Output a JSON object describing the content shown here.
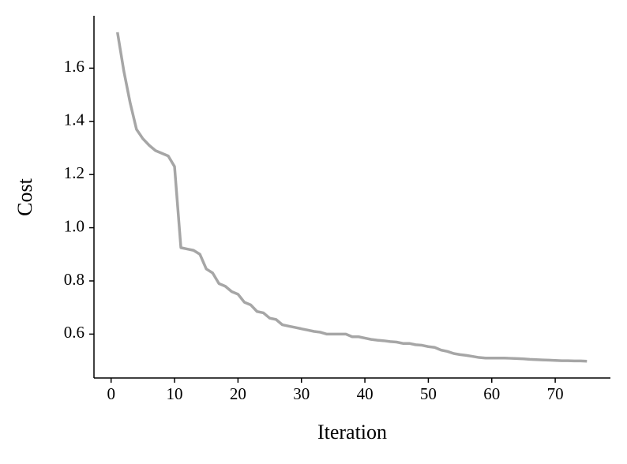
{
  "chart_data": {
    "type": "line",
    "xlabel": "Iteration",
    "ylabel": "Cost",
    "x": [
      1,
      2,
      3,
      4,
      5,
      6,
      7,
      8,
      9,
      10,
      11,
      12,
      13,
      14,
      15,
      16,
      17,
      18,
      19,
      20,
      21,
      22,
      23,
      24,
      25,
      26,
      27,
      28,
      29,
      30,
      31,
      32,
      33,
      34,
      35,
      36,
      37,
      38,
      39,
      40,
      41,
      42,
      43,
      44,
      45,
      46,
      47,
      48,
      49,
      50,
      51,
      52,
      53,
      54,
      55,
      56,
      57,
      58,
      59,
      60,
      61,
      62,
      63,
      64,
      65,
      66,
      67,
      68,
      69,
      70,
      71,
      72,
      73,
      74,
      75
    ],
    "series": [
      {
        "color": "#a6a6a6",
        "values": [
          1.735,
          1.59,
          1.47,
          1.37,
          1.335,
          1.31,
          1.29,
          1.28,
          1.27,
          1.23,
          0.925,
          0.92,
          0.915,
          0.9,
          0.845,
          0.83,
          0.79,
          0.78,
          0.76,
          0.75,
          0.72,
          0.71,
          0.685,
          0.68,
          0.66,
          0.655,
          0.635,
          0.63,
          0.625,
          0.62,
          0.615,
          0.61,
          0.607,
          0.6,
          0.6,
          0.6,
          0.6,
          0.59,
          0.59,
          0.585,
          0.58,
          0.577,
          0.575,
          0.572,
          0.57,
          0.565,
          0.565,
          0.56,
          0.558,
          0.553,
          0.55,
          0.54,
          0.535,
          0.527,
          0.523,
          0.52,
          0.516,
          0.512,
          0.51,
          0.51,
          0.51,
          0.51,
          0.509,
          0.508,
          0.507,
          0.505,
          0.504,
          0.503,
          0.502,
          0.501,
          0.5,
          0.5,
          0.499,
          0.499,
          0.498
        ]
      }
    ],
    "xlim": [
      -2.7,
      78.7
    ],
    "ylim": [
      0.435,
      1.797
    ],
    "xticks": [
      0,
      10,
      20,
      30,
      40,
      50,
      60,
      70
    ],
    "yticks": [
      0.6,
      0.8,
      {
        "value": 1.0,
        "label": "1.0"
      },
      1.2,
      1.4,
      1.6
    ],
    "grid": false
  }
}
